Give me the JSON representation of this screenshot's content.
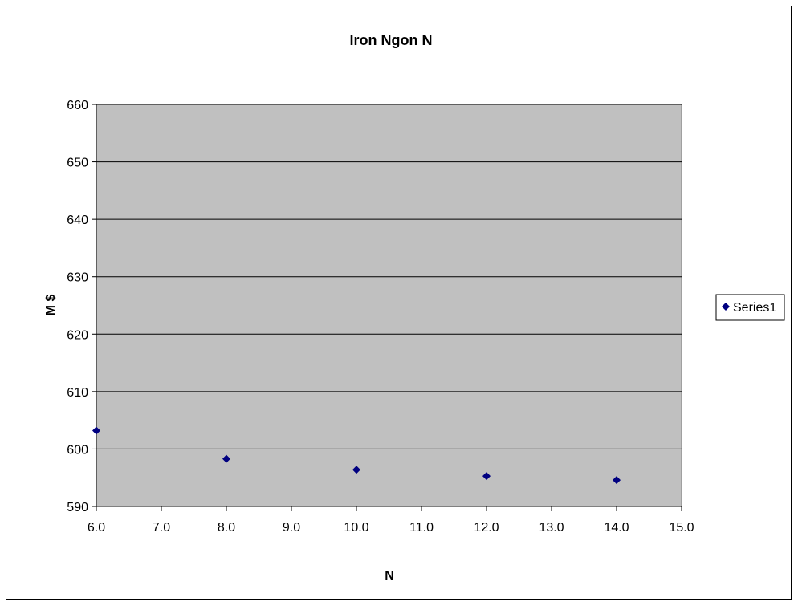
{
  "chart_data": {
    "type": "scatter",
    "title": "Iron Ngon N",
    "xlabel": "N",
    "ylabel": "M $",
    "xlim": [
      6.0,
      15.0
    ],
    "ylim": [
      590,
      660
    ],
    "xticks": [
      "6.0",
      "7.0",
      "8.0",
      "9.0",
      "10.0",
      "11.0",
      "12.0",
      "13.0",
      "14.0",
      "15.0"
    ],
    "yticks": [
      "590",
      "600",
      "610",
      "620",
      "630",
      "640",
      "650",
      "660"
    ],
    "grid": "horizontal",
    "legend_position": "right",
    "plot_background": "#c0c0c0",
    "series": [
      {
        "name": "Series1",
        "color": "#000080",
        "marker": "diamond",
        "x": [
          6,
          8,
          10,
          12,
          14
        ],
        "y": [
          603.2,
          598.3,
          596.4,
          595.3,
          594.6
        ]
      }
    ]
  }
}
